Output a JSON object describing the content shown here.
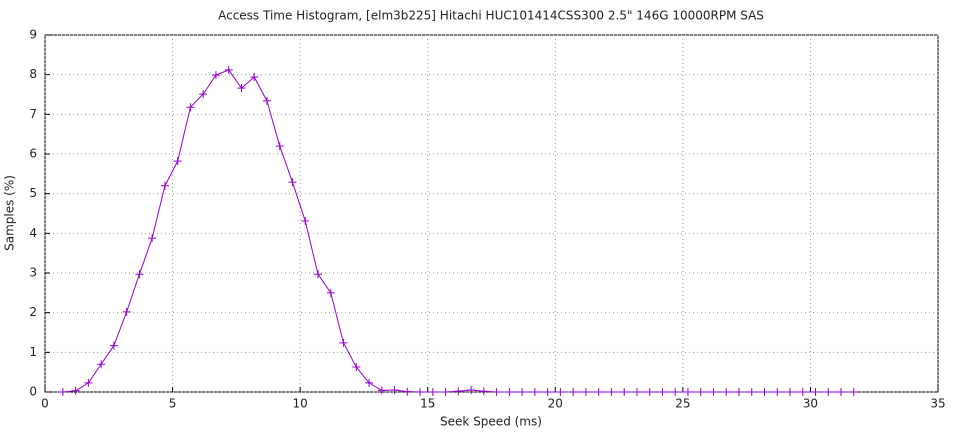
{
  "chart_data": {
    "type": "line",
    "title": "Access Time Histogram, [elm3b225] Hitachi HUC101414CSS300 2.5\" 146G 10000RPM SAS",
    "x_label": "Seek Speed (ms)",
    "y_label": "Samples (%)",
    "x": [
      0.7,
      1.2,
      1.7,
      2.2,
      2.7,
      3.2,
      3.7,
      4.2,
      4.7,
      5.2,
      5.7,
      6.2,
      6.7,
      7.2,
      7.7,
      8.2,
      8.7,
      9.2,
      9.7,
      10.2,
      10.7,
      11.2,
      11.7,
      12.2,
      12.7,
      13.2,
      13.7,
      14.2,
      14.7,
      15.2,
      15.7,
      16.2,
      16.7,
      17.2,
      17.7,
      18.2,
      18.7,
      19.2,
      19.7,
      20.2,
      20.7,
      21.2,
      21.7,
      22.2,
      22.7,
      23.2,
      23.7,
      24.2,
      24.7,
      25.2,
      25.7,
      26.2,
      26.7,
      27.2,
      27.7,
      28.2,
      28.7,
      29.2,
      29.7,
      30.2,
      30.7,
      31.2,
      31.7
    ],
    "series": [
      {
        "color": "#9400d3",
        "marker": "+",
        "values": [
          0,
          0.03,
          0.23,
          0.7,
          1.17,
          2.02,
          2.97,
          3.88,
          5.2,
          5.82,
          7.18,
          7.51,
          7.99,
          8.12,
          7.66,
          7.94,
          7.34,
          6.2,
          5.29,
          4.31,
          2.97,
          2.5,
          1.24,
          0.63,
          0.23,
          0.04,
          0.05,
          0.01,
          0,
          0,
          0,
          0.02,
          0.05,
          0.02,
          0,
          0,
          0,
          0,
          0,
          0,
          0,
          0,
          0,
          0,
          0,
          0,
          0,
          0,
          0,
          0,
          0,
          0,
          0,
          0,
          0,
          0,
          0,
          0,
          0,
          0,
          0,
          0,
          0
        ]
      }
    ],
    "xlim": [
      0,
      35
    ],
    "xticks": [
      0,
      5,
      10,
      15,
      20,
      25,
      30,
      35
    ],
    "ylim": [
      0,
      9
    ],
    "yticks": [
      0,
      1,
      2,
      3,
      4,
      5,
      6,
      7,
      8,
      9
    ],
    "grid": true
  }
}
